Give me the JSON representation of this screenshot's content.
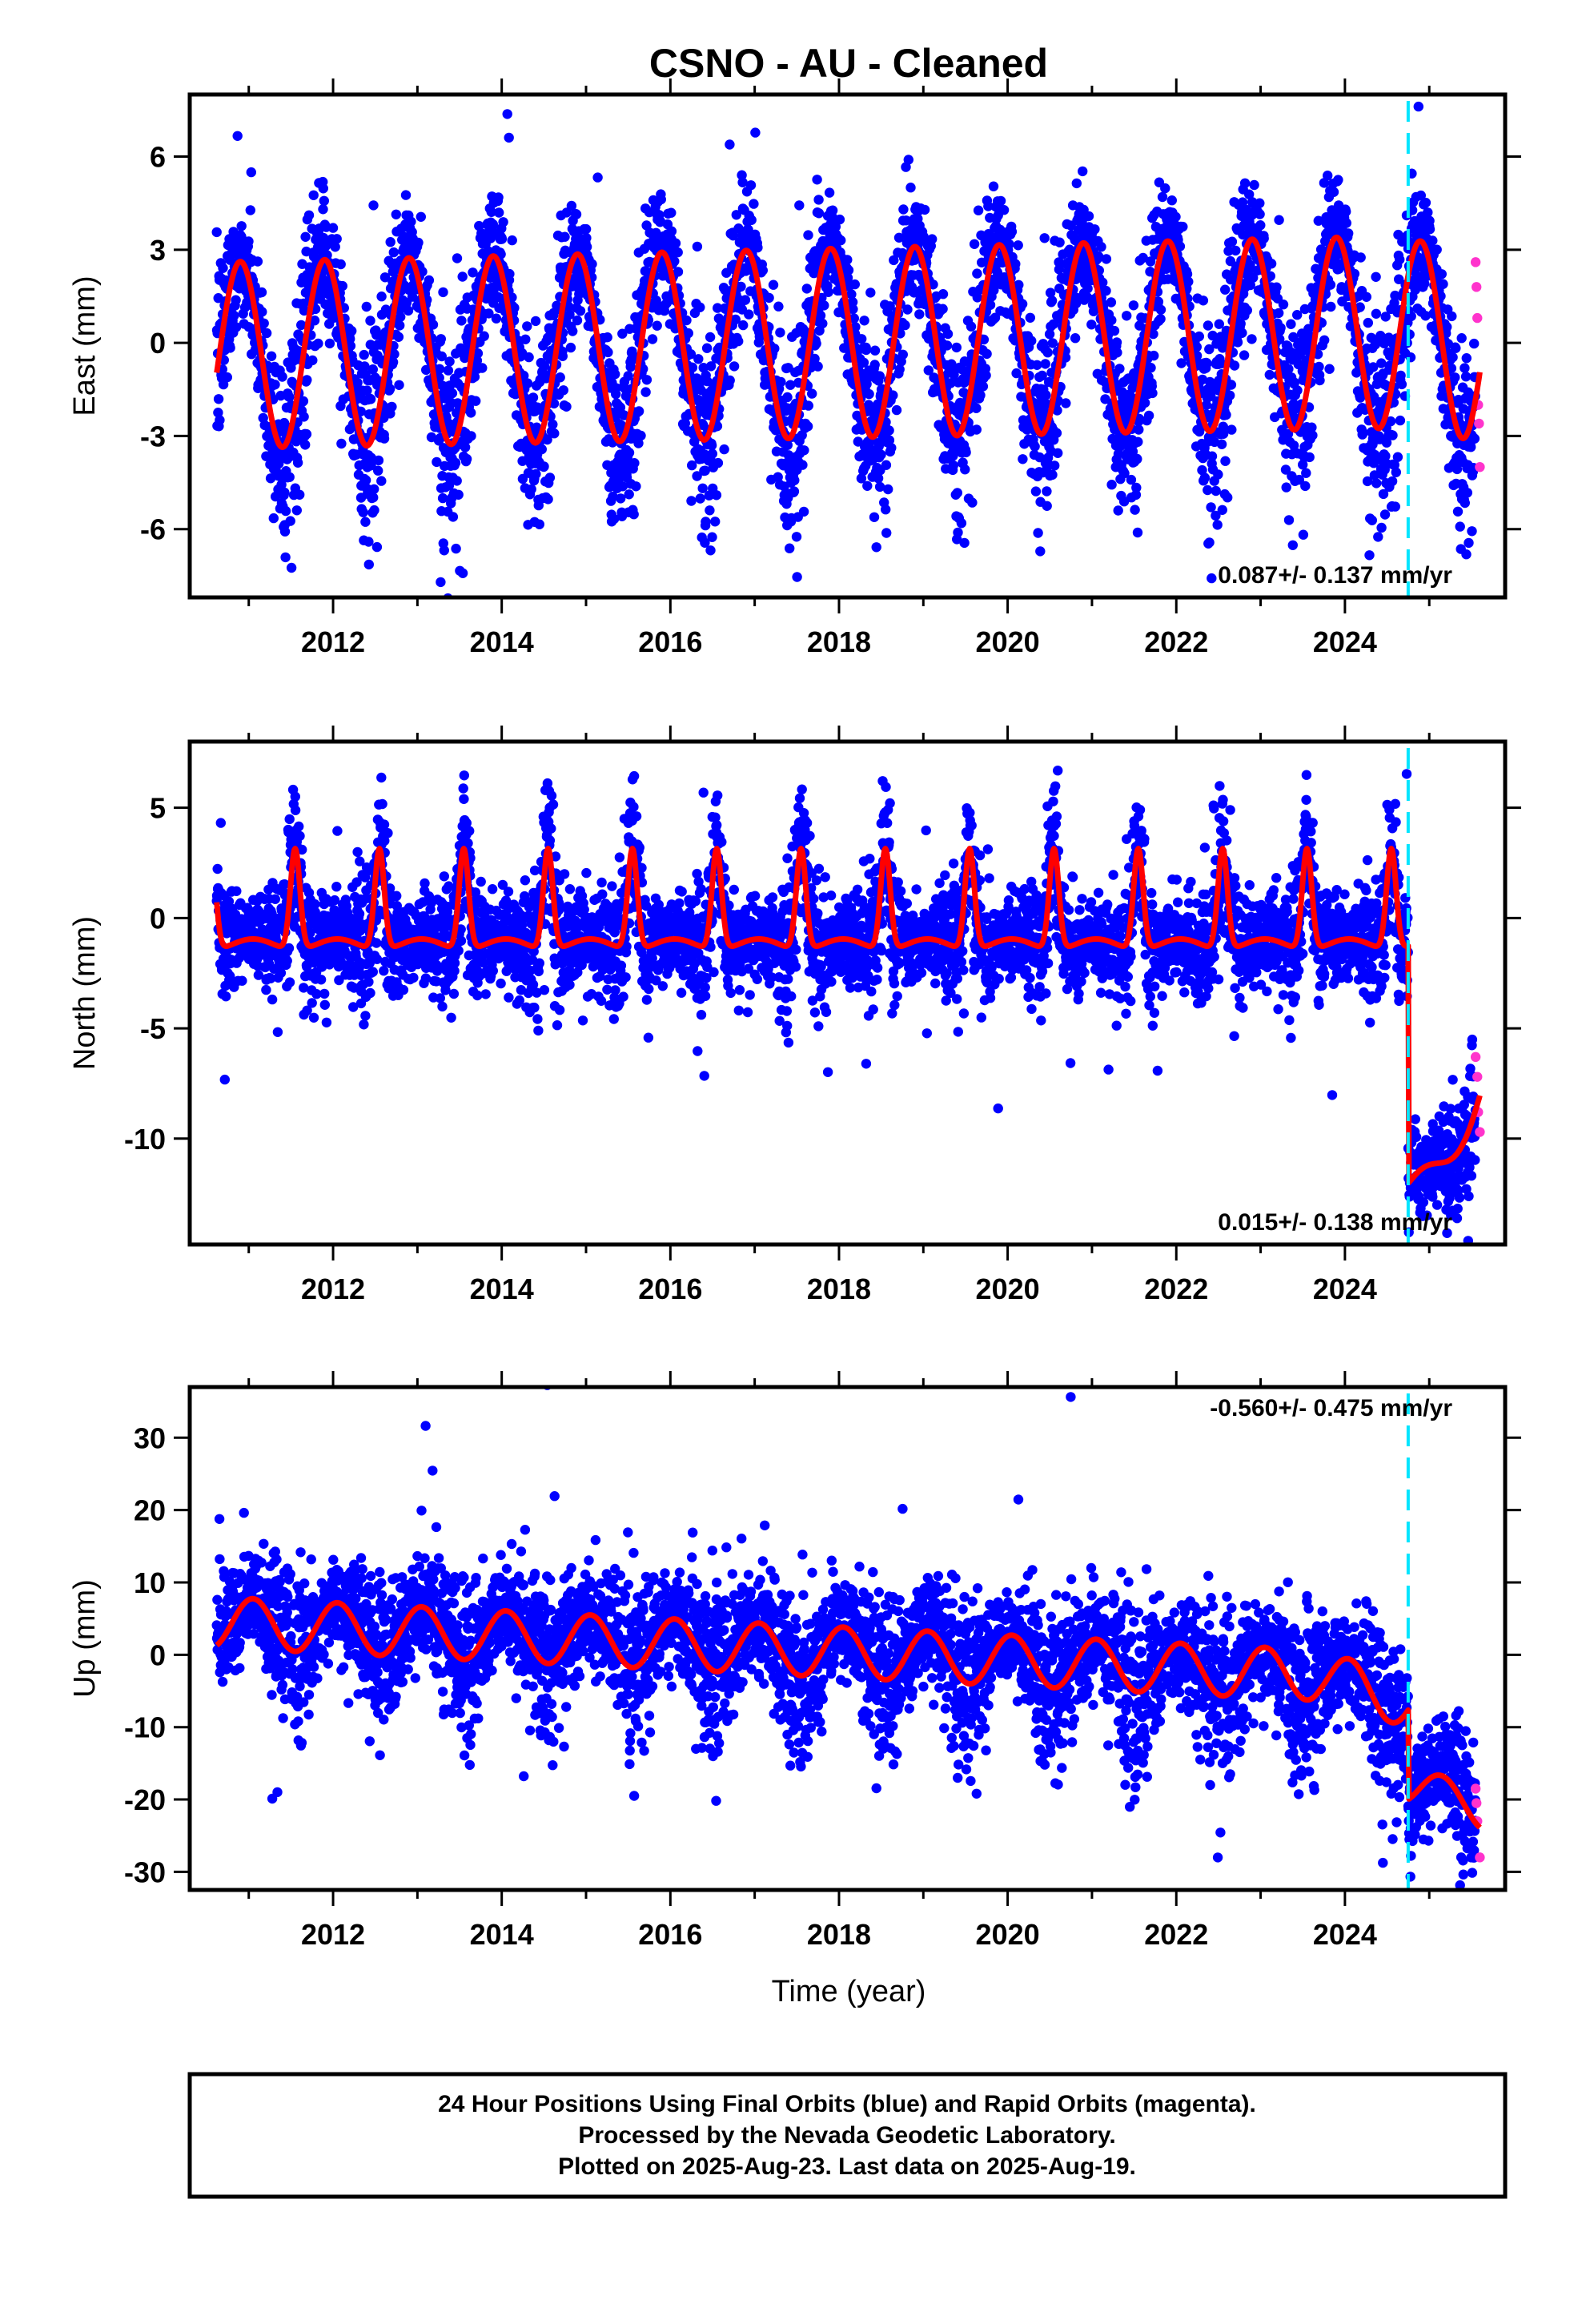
{
  "title": "CSNO  - AU - Cleaned",
  "xlabel": "Time (year)",
  "footer": {
    "line1": "24 Hour Positions Using Final Orbits (blue) and Rapid Orbits (magenta).",
    "line2": "Processed by the Nevada Geodetic Laboratory.",
    "line3": "Plotted on 2025-Aug-23. Last data on 2025-Aug-19."
  },
  "colors": {
    "final_orbits": "#0000ff",
    "rapid_orbits": "#ff33cc",
    "model_fit": "#ff0000",
    "event_line": "#00e5ff"
  },
  "chart_data": [
    {
      "type": "scatter",
      "panel": "east",
      "ylabel": "East (mm)",
      "rate_label": "0.087+/- 0.137 mm/yr",
      "xlim": [
        2010.3,
        2025.9
      ],
      "ylim": [
        -8.2,
        8
      ],
      "xticks": [
        2012,
        2014,
        2016,
        2018,
        2020,
        2022,
        2024
      ],
      "yticks": [
        6,
        3,
        0,
        -3,
        -6
      ],
      "ytick_labels": [
        "6",
        "3",
        "0",
        "-3",
        "-6"
      ],
      "event_line_x": 2024.75,
      "model": {
        "annual_amplitude_start": 3.0,
        "annual_amplitude_end": 3.1,
        "phase_peak_year_fraction": 0.9,
        "offset_start": -0.4,
        "offset_end": 0.4,
        "rate": 0.087
      },
      "scatter_sigma": 1.3,
      "rapid_points": [
        {
          "x": 2025.55,
          "y": 2.6
        },
        {
          "x": 2025.56,
          "y": 1.8
        },
        {
          "x": 2025.57,
          "y": 0.8
        },
        {
          "x": 2025.58,
          "y": -2.0
        },
        {
          "x": 2025.59,
          "y": -2.6
        },
        {
          "x": 2025.6,
          "y": -4.0
        }
      ],
      "series": [
        {
          "name": "Final orbits",
          "description": "daily positions"
        },
        {
          "name": "Rapid orbits",
          "description": "recent daily positions"
        },
        {
          "name": "Model fit",
          "description": "linear trend with seasonal terms"
        }
      ]
    },
    {
      "type": "scatter",
      "panel": "north",
      "ylabel": "North (mm)",
      "rate_label": "0.015+/- 0.138 mm/yr",
      "xlim": [
        2010.3,
        2025.9
      ],
      "ylim": [
        -14.8,
        8
      ],
      "xticks": [
        2012,
        2014,
        2016,
        2018,
        2020,
        2022,
        2024
      ],
      "yticks": [
        5,
        0,
        -5,
        -10
      ],
      "ytick_labels": [
        "5",
        "0",
        "-5",
        "-10"
      ],
      "event_line_x": 2024.75,
      "model": {
        "peak_height": 3.4,
        "baseline": -1.2,
        "peak_time_year_fraction": 0.55,
        "offset_after_event": -12.5,
        "recovery_end": -7.8
      },
      "scatter_sigma": 1.3,
      "rapid_points": [
        {
          "x": 2025.55,
          "y": -6.3
        },
        {
          "x": 2025.57,
          "y": -7.2
        },
        {
          "x": 2025.58,
          "y": -8.8
        },
        {
          "x": 2025.6,
          "y": -9.7
        }
      ]
    },
    {
      "type": "scatter",
      "panel": "up",
      "ylabel": "Up (mm)",
      "rate_label": "-0.560+/- 0.475 mm/yr",
      "xlim": [
        2010.3,
        2025.9
      ],
      "ylim": [
        -32.5,
        37
      ],
      "xticks": [
        2012,
        2014,
        2016,
        2018,
        2020,
        2022,
        2024
      ],
      "yticks": [
        30,
        20,
        10,
        0,
        -10,
        -20,
        -30
      ],
      "ytick_labels": [
        "30",
        "20",
        "10",
        "0",
        "-10",
        "-20",
        "-30"
      ],
      "event_line_x": 2024.75,
      "model": {
        "annual_amplitude": 3.5,
        "phase_peak_year_fraction": 0.05,
        "offset_start": 4.5,
        "rate": -0.56,
        "offset_after_event": -12,
        "end_value": -21.5
      },
      "scatter_sigma": 4.5,
      "rapid_points": [
        {
          "x": 2025.55,
          "y": -18.5
        },
        {
          "x": 2025.56,
          "y": -20.5
        },
        {
          "x": 2025.57,
          "y": -23.0
        },
        {
          "x": 2025.6,
          "y": -28.0
        }
      ]
    }
  ]
}
